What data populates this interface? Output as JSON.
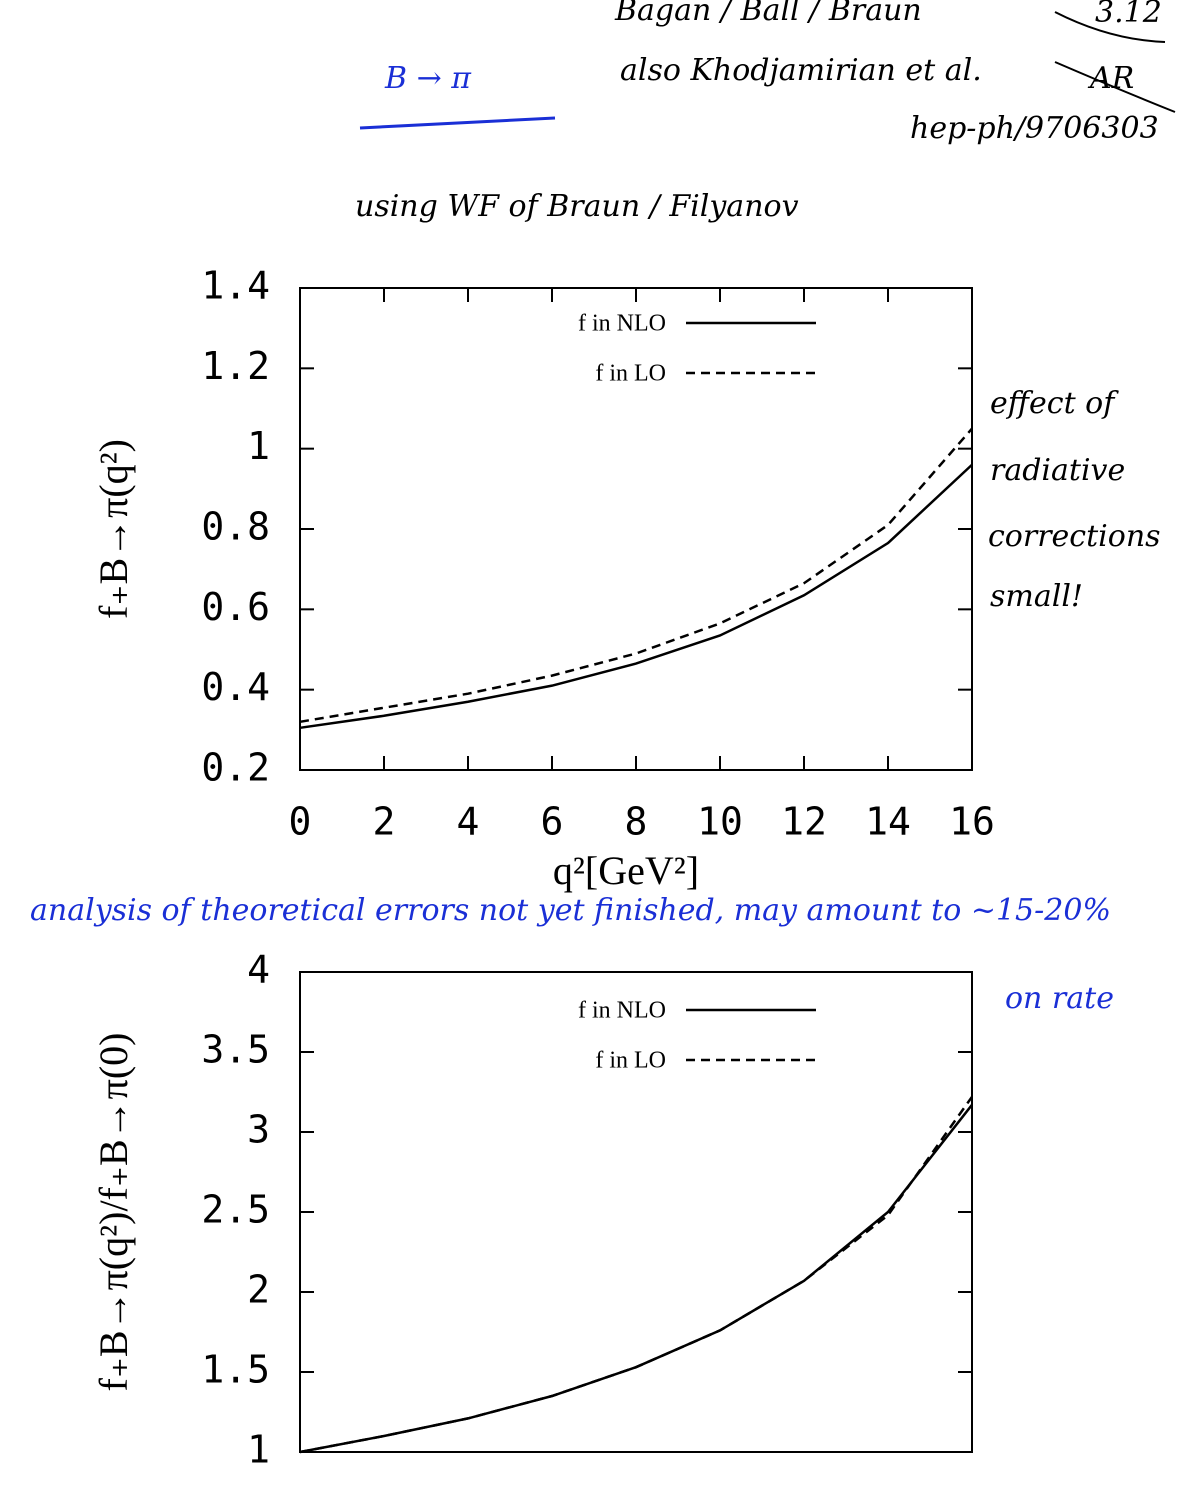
{
  "chart_data": [
    {
      "type": "line",
      "x_label": "q²[GeV²]",
      "y_label": "f₊B→π(q²)",
      "x": [
        0,
        2,
        4,
        6,
        8,
        10,
        12,
        14,
        16
      ],
      "series": [
        {
          "name": "f in NLO",
          "color": "#000000",
          "style": "solid",
          "values": [
            0.305,
            0.335,
            0.37,
            0.41,
            0.465,
            0.535,
            0.635,
            0.765,
            0.96
          ]
        },
        {
          "name": "f in LO",
          "color": "#000000",
          "style": "dashed",
          "values": [
            0.32,
            0.355,
            0.39,
            0.435,
            0.49,
            0.565,
            0.665,
            0.81,
            1.05
          ]
        }
      ],
      "xlim": [
        0,
        16
      ],
      "xticks": [
        0,
        2,
        4,
        6,
        8,
        10,
        12,
        14,
        16
      ],
      "ylim": [
        0.2,
        1.4
      ],
      "yticks": [
        0.2,
        0.4,
        0.6,
        0.8,
        1,
        1.2,
        1.4
      ],
      "legend": "top"
    },
    {
      "type": "line",
      "y_label": "f₊B→π(q²)/f₊B→π(0)",
      "x": [
        0,
        2,
        4,
        6,
        8,
        10,
        12,
        14,
        16
      ],
      "series": [
        {
          "name": "f in NLO",
          "color": "#000000",
          "style": "solid",
          "values": [
            1,
            1.1,
            1.21,
            1.35,
            1.53,
            1.76,
            2.07,
            2.5,
            3.17
          ]
        },
        {
          "name": "f in LO",
          "color": "#000000",
          "style": "dashed",
          "values": [
            1,
            1.1,
            1.21,
            1.35,
            1.53,
            1.76,
            2.07,
            2.48,
            3.22
          ]
        }
      ],
      "xlim": [
        0,
        16
      ],
      "ylim": [
        1,
        4
      ],
      "yticks": [
        1,
        1.5,
        2,
        2.5,
        3,
        3.5,
        4
      ],
      "legend": "top"
    }
  ],
  "annotations": {
    "header": "B → π",
    "authors": "Bagan / Ball / Braun",
    "also": "also Khodjamirian et al.",
    "ref": "hep-ph/9706303",
    "date": "3.12",
    "initials": "AR",
    "using": "using WF of Braun / Filyanov",
    "effect": [
      "effect of",
      "radiative",
      "corrections",
      "small!"
    ],
    "errors": "analysis of theoretical errors not yet finished, may amount to ~15-20%",
    "rate": "on rate"
  }
}
